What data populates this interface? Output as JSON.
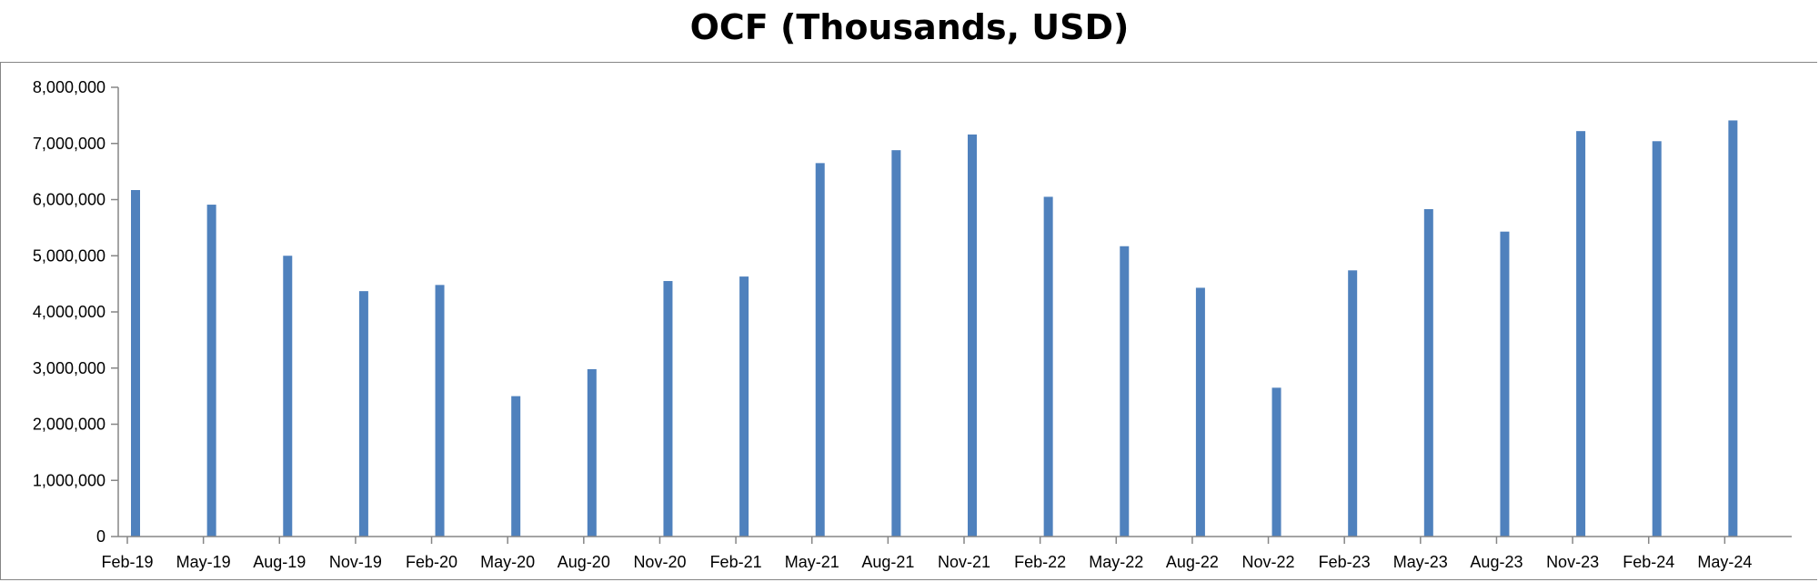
{
  "chart_data": {
    "type": "bar",
    "title": "OCF (Thousands, USD)",
    "xlabel": "",
    "ylabel": "",
    "categories": [
      "Feb-19",
      "May-19",
      "Aug-19",
      "Nov-19",
      "Feb-20",
      "May-20",
      "Aug-20",
      "Nov-20",
      "Feb-21",
      "May-21",
      "Aug-21",
      "Nov-21",
      "Feb-22",
      "May-22",
      "Aug-22",
      "Nov-22",
      "Feb-23",
      "May-23",
      "Aug-23",
      "Nov-23",
      "Feb-24",
      "May-24"
    ],
    "values": [
      6170000,
      5910000,
      5000000,
      4370000,
      4480000,
      2500000,
      2980000,
      4550000,
      4630000,
      6650000,
      6880000,
      7160000,
      6050000,
      5170000,
      4430000,
      2650000,
      4740000,
      5830000,
      5430000,
      7220000,
      7040000,
      7410000
    ],
    "ylim": [
      0,
      8000000
    ],
    "yticks": [
      "0",
      "1,000,000",
      "2,000,000",
      "3,000,000",
      "4,000,000",
      "5,000,000",
      "6,000,000",
      "7,000,000",
      "8,000,000"
    ],
    "ytick_values": [
      0,
      1000000,
      2000000,
      3000000,
      4000000,
      5000000,
      6000000,
      7000000,
      8000000
    ],
    "grid": false,
    "legend": "none",
    "bar_color": "#4F81BD",
    "axis_color": "#868686"
  }
}
